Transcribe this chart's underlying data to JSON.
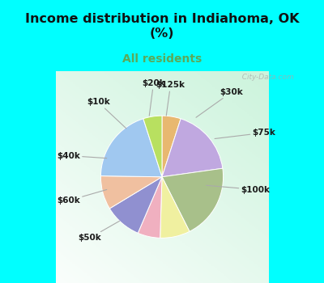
{
  "title": "Income distribution in Indiahoma, OK\n(%)",
  "subtitle": "All residents",
  "title_color": "#111111",
  "subtitle_color": "#5aaa5a",
  "background_top": "#00ffff",
  "watermark": "  City-Data.com",
  "labels_cw": [
    "$20k",
    "$100k",
    "$75k",
    "$30k",
    "$125k",
    "$10k",
    "$40k",
    "$60k",
    "$50k"
  ],
  "sizes_cw": [
    5,
    18,
    20,
    8,
    6,
    10,
    9,
    20,
    5
  ],
  "colors_cw": [
    "#e8b870",
    "#c0a8e0",
    "#a8c08a",
    "#f0f0a0",
    "#f0b0c0",
    "#9090d0",
    "#f0c0a0",
    "#a0c8f0",
    "#b8e060"
  ],
  "fig_width": 4.0,
  "fig_height": 3.5,
  "dpi": 100
}
